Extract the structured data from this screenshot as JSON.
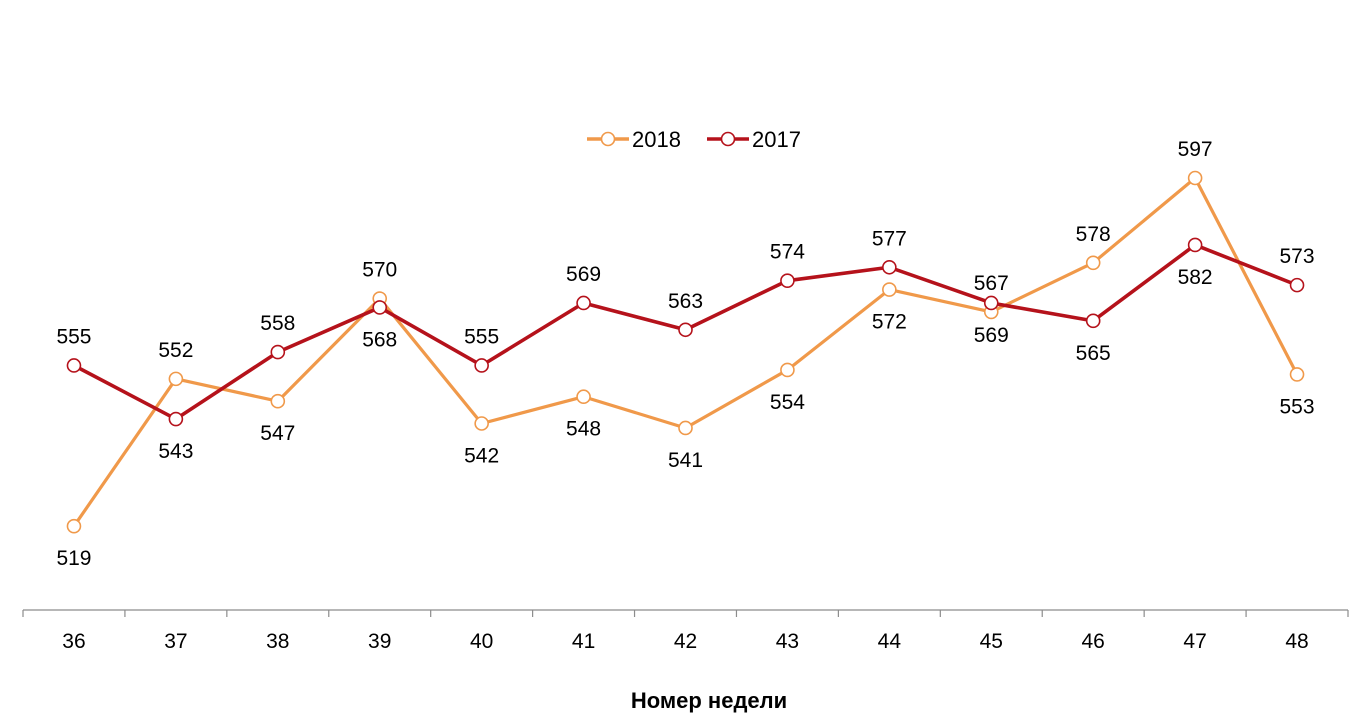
{
  "chart_data": {
    "type": "line",
    "title": "",
    "xlabel": "Номер недели",
    "ylabel": "",
    "categories": [
      "36",
      "37",
      "38",
      "39",
      "40",
      "41",
      "42",
      "43",
      "44",
      "45",
      "46",
      "47",
      "48"
    ],
    "ylim": [
      500,
      600
    ],
    "grid": false,
    "legend_position": "top-center",
    "series": [
      {
        "name": "2018",
        "color": "#F0994A",
        "marker": "open-circle",
        "values": [
          519,
          552,
          547,
          570,
          542,
          548,
          541,
          554,
          572,
          567,
          578,
          597,
          553
        ],
        "label_positions": [
          "below",
          "above",
          "below",
          "above",
          "below",
          "below",
          "below",
          "below",
          "below",
          "above",
          "above",
          "above",
          "below"
        ]
      },
      {
        "name": "2017",
        "color": "#B5121B",
        "marker": "open-circle",
        "values": [
          555,
          543,
          558,
          568,
          555,
          569,
          563,
          574,
          577,
          569,
          565,
          582,
          573
        ],
        "label_positions": [
          "above",
          "below",
          "above",
          "below",
          "above",
          "above",
          "above",
          "above",
          "above",
          "below",
          "below",
          "below",
          "above"
        ]
      }
    ]
  }
}
